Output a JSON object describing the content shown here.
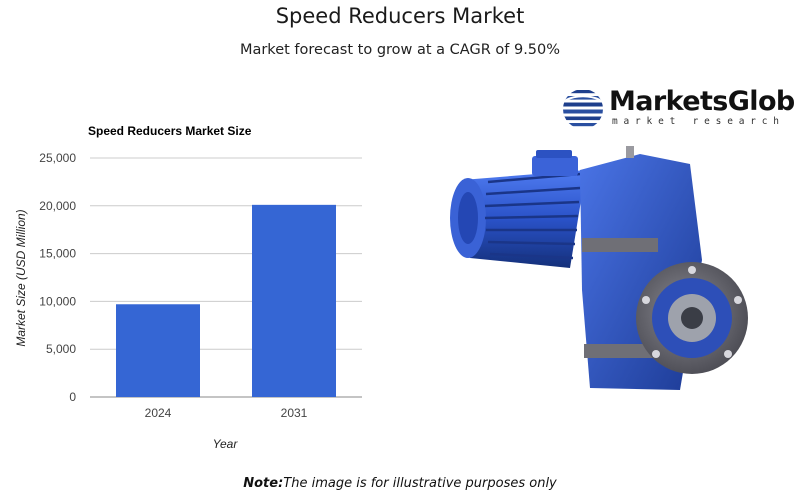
{
  "header": {
    "title": "Speed Reducers Market",
    "subtitle": "Market forecast to grow at a CAGR of 9.50%"
  },
  "logo": {
    "name": "MarketsGlob",
    "tagline": "market research"
  },
  "colors": {
    "bar": "#3566d4",
    "grid": "#cccccc",
    "product_blue": "#2a52c8"
  },
  "product_image": {
    "icon": "speed-reducer-gearbox-icon"
  },
  "chart_data": {
    "type": "bar",
    "title": "Speed Reducers Market Size",
    "categories": [
      "2024",
      "2031"
    ],
    "values": [
      9700,
      20100
    ],
    "xlabel": "Year",
    "ylabel": "Market Size (USD Million)",
    "ylim": [
      0,
      25000
    ],
    "yticks": [
      0,
      5000,
      10000,
      15000,
      20000,
      25000
    ],
    "ytick_labels": [
      "0",
      "5,000",
      "10,000",
      "15,000",
      "20,000",
      "25,000"
    ],
    "grid": true,
    "legend": "none"
  },
  "note": {
    "label": "Note:",
    "text": "The image is for illustrative purposes only"
  }
}
